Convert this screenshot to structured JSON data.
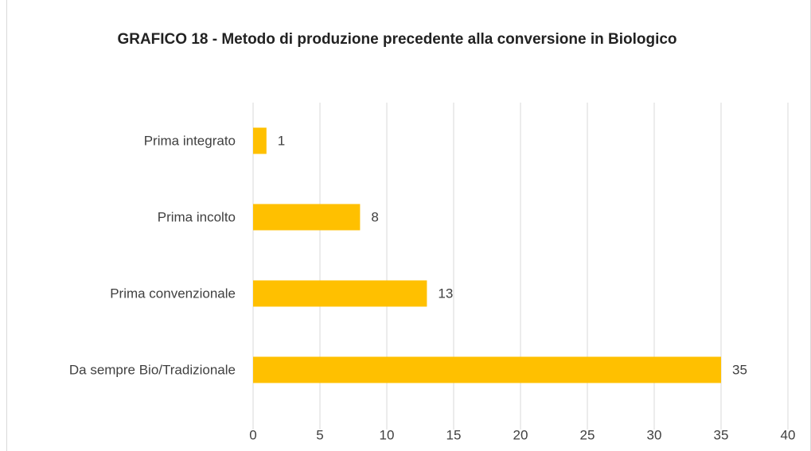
{
  "chart_data": {
    "type": "hbar",
    "title": "GRAFICO 18 - Metodo di produzione precedente alla conversione in Biologico",
    "categories": [
      "Prima integrato",
      "Prima incolto",
      "Prima convenzionale",
      "Da sempre Bio/Tradizionale"
    ],
    "values": [
      1,
      8,
      13,
      35
    ],
    "color": "#ffc000",
    "xlim": [
      0,
      40
    ],
    "xticks": [
      0,
      5,
      10,
      15,
      20,
      25,
      30,
      35,
      40
    ],
    "grid": true
  }
}
